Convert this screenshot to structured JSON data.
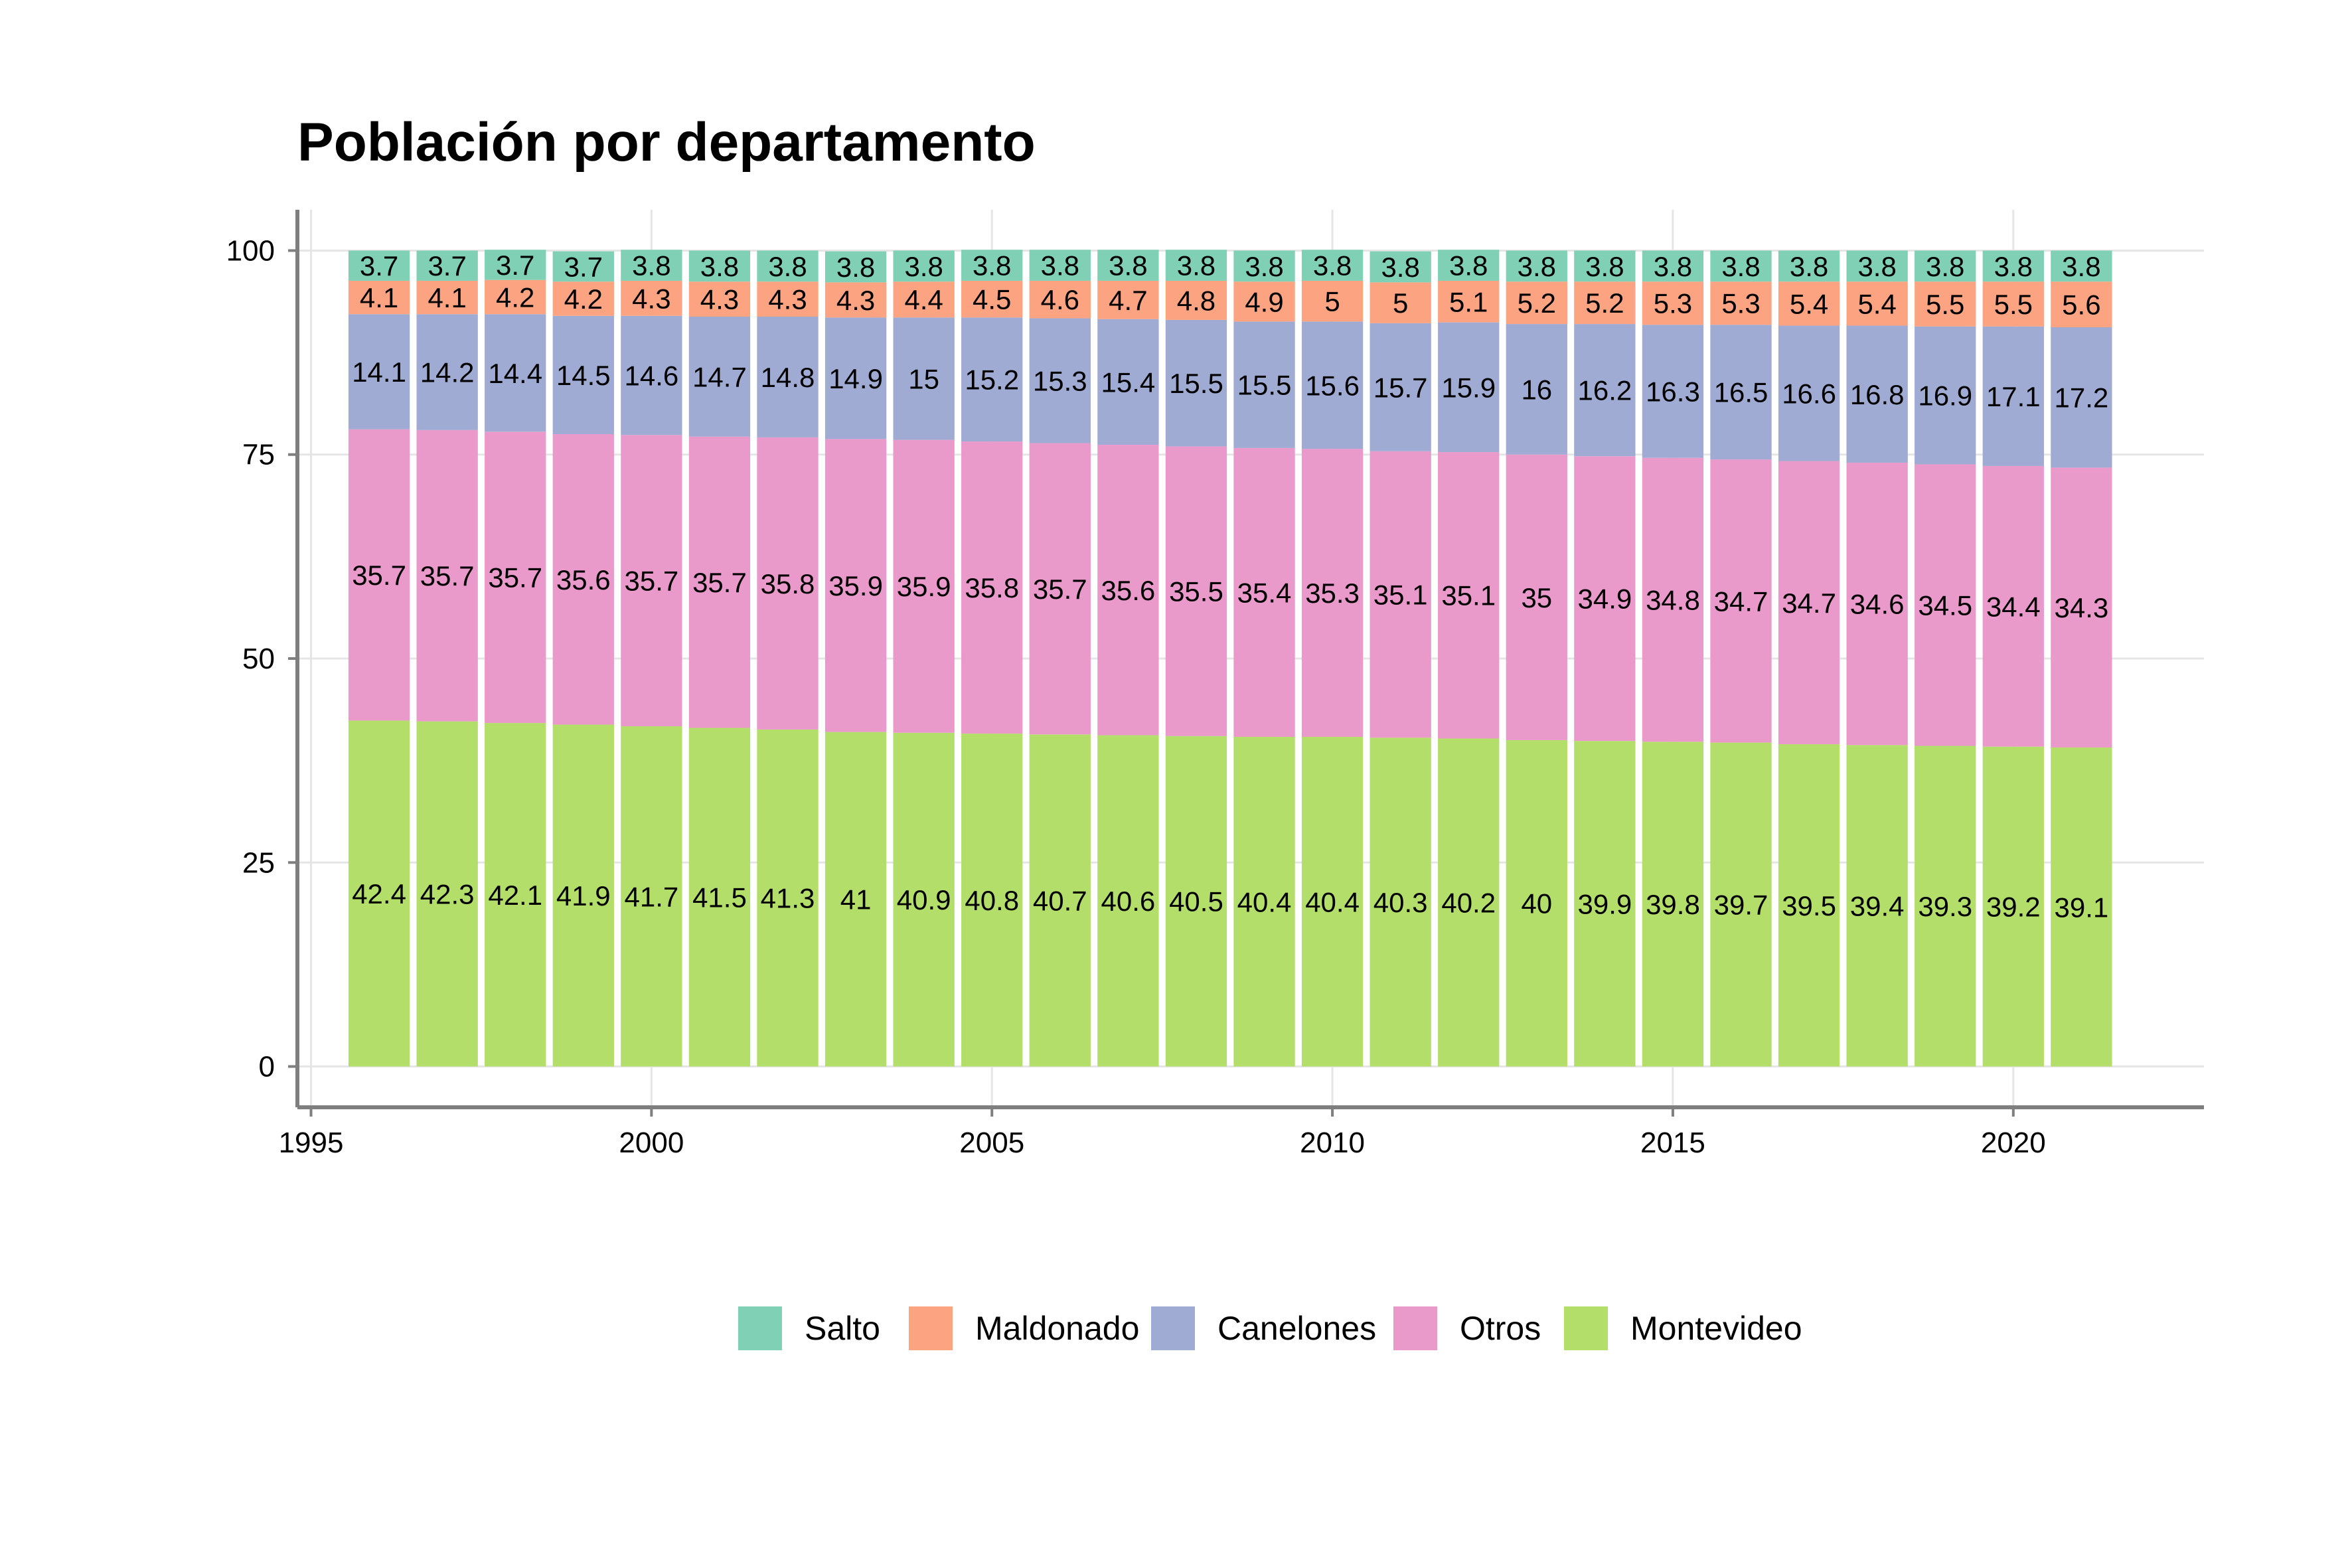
{
  "chart_data": {
    "type": "bar",
    "stacked": true,
    "title": "Población por departamento",
    "xlabel": "",
    "ylabel": "",
    "x": [
      1996,
      1997,
      1998,
      1999,
      2000,
      2001,
      2002,
      2003,
      2004,
      2005,
      2006,
      2007,
      2008,
      2009,
      2010,
      2011,
      2012,
      2013,
      2014,
      2015,
      2016,
      2017,
      2018,
      2019,
      2020,
      2021
    ],
    "xlim": [
      1994.8,
      2022.8
    ],
    "ylim": [
      -5,
      105
    ],
    "x_ticks": [
      1995,
      2000,
      2005,
      2010,
      2015,
      2020
    ],
    "y_ticks": [
      0,
      25,
      50,
      75,
      100
    ],
    "x_tick_labels": [
      "1995",
      "2000",
      "2005",
      "2010",
      "2015",
      "2020"
    ],
    "y_tick_labels": [
      "0",
      "25",
      "50",
      "75",
      "100"
    ],
    "grid": true,
    "legend_position": "bottom",
    "series": [
      {
        "name": "Montevideo",
        "color": "#b3de69",
        "values": [
          42.4,
          42.3,
          42.1,
          41.9,
          41.7,
          41.5,
          41.3,
          41,
          40.9,
          40.8,
          40.7,
          40.6,
          40.5,
          40.4,
          40.4,
          40.3,
          40.2,
          40,
          39.9,
          39.8,
          39.7,
          39.5,
          39.4,
          39.3,
          39.2,
          39.1
        ]
      },
      {
        "name": "Otros",
        "color": "#e99acb",
        "values": [
          35.7,
          35.7,
          35.7,
          35.6,
          35.7,
          35.7,
          35.8,
          35.9,
          35.9,
          35.8,
          35.7,
          35.6,
          35.5,
          35.4,
          35.3,
          35.1,
          35.1,
          35,
          34.9,
          34.8,
          34.7,
          34.7,
          34.6,
          34.5,
          34.4,
          34.3
        ]
      },
      {
        "name": "Canelones",
        "color": "#9fabd3",
        "values": [
          14.1,
          14.2,
          14.4,
          14.5,
          14.6,
          14.7,
          14.8,
          14.9,
          15,
          15.2,
          15.3,
          15.4,
          15.5,
          15.5,
          15.6,
          15.7,
          15.9,
          16,
          16.2,
          16.3,
          16.5,
          16.6,
          16.8,
          16.9,
          17.1,
          17.2
        ]
      },
      {
        "name": "Maldonado",
        "color": "#fca381",
        "values": [
          4.1,
          4.1,
          4.2,
          4.2,
          4.3,
          4.3,
          4.3,
          4.3,
          4.4,
          4.5,
          4.6,
          4.7,
          4.8,
          4.9,
          5,
          5,
          5.1,
          5.2,
          5.2,
          5.3,
          5.3,
          5.4,
          5.4,
          5.5,
          5.5,
          5.6
        ]
      },
      {
        "name": "Salto",
        "color": "#7fd0b4",
        "values": [
          3.7,
          3.7,
          3.7,
          3.7,
          3.8,
          3.8,
          3.8,
          3.8,
          3.8,
          3.8,
          3.8,
          3.8,
          3.8,
          3.8,
          3.8,
          3.8,
          3.8,
          3.8,
          3.8,
          3.8,
          3.8,
          3.8,
          3.8,
          3.8,
          3.8,
          3.8
        ]
      }
    ],
    "legend_order": [
      "Salto",
      "Maldonado",
      "Canelones",
      "Otros",
      "Montevideo"
    ],
    "colors": {
      "grid": "#e5e5e5",
      "axis": "#7f7f7f",
      "text": "#000000"
    }
  }
}
